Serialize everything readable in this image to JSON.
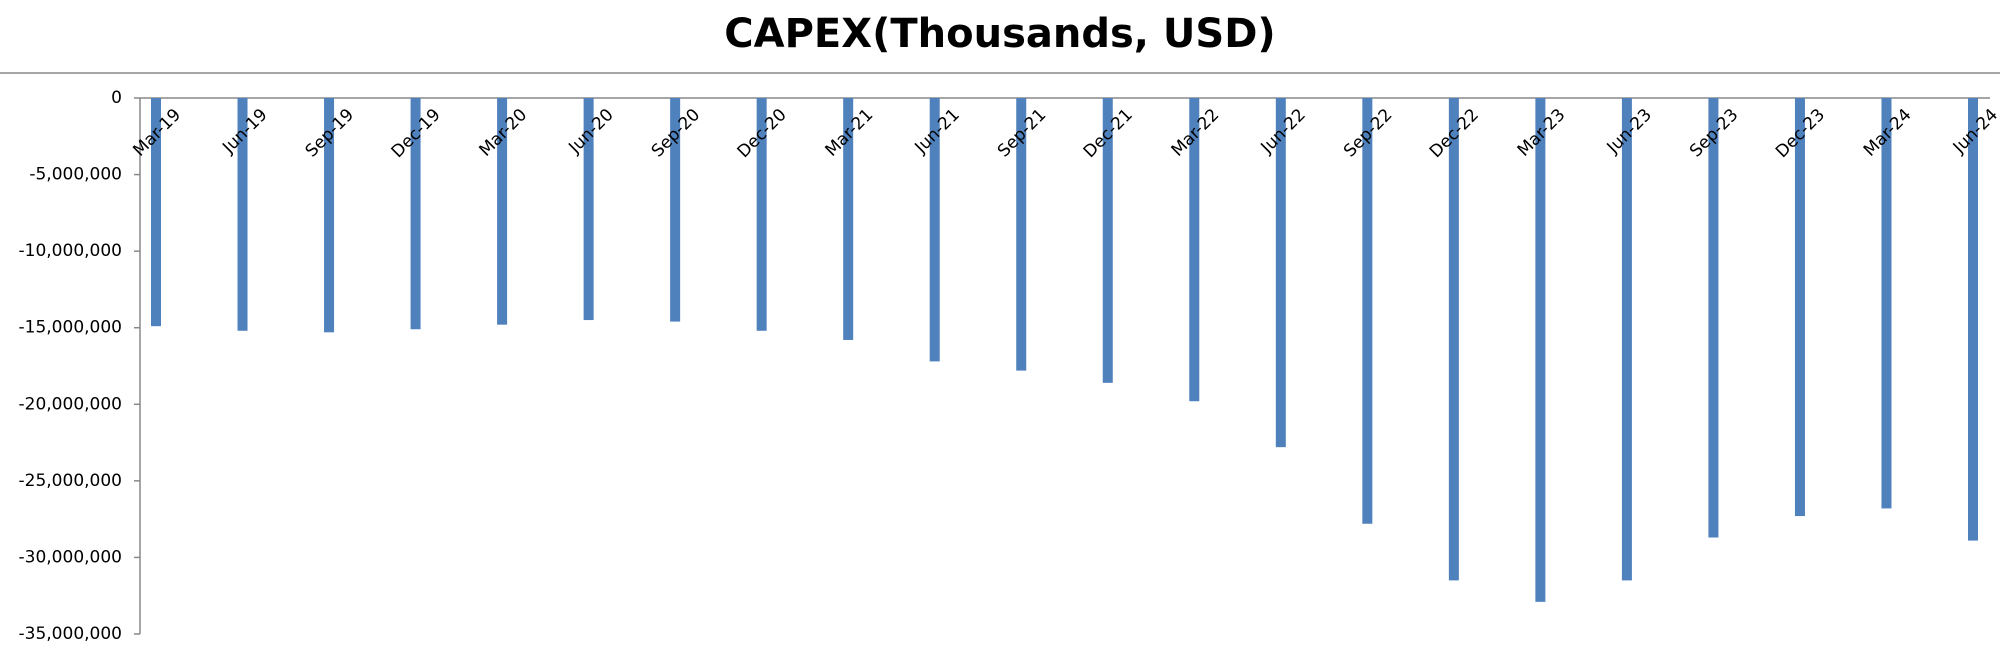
{
  "chart_data": {
    "type": "bar",
    "title": "CAPEX(Thousands, USD)",
    "categories": [
      "Mar-19",
      "Jun-19",
      "Sep-19",
      "Dec-19",
      "Mar-20",
      "Jun-20",
      "Sep-20",
      "Dec-20",
      "Mar-21",
      "Jun-21",
      "Sep-21",
      "Dec-21",
      "Mar-22",
      "Jun-22",
      "Sep-22",
      "Dec-22",
      "Mar-23",
      "Jun-23",
      "Sep-23",
      "Dec-23",
      "Mar-24",
      "Jun-24"
    ],
    "values": [
      -14900000,
      -15200000,
      -15300000,
      -15100000,
      -14800000,
      -14500000,
      -14600000,
      -15200000,
      -15800000,
      -17200000,
      -17800000,
      -18600000,
      -19800000,
      -22800000,
      -27800000,
      -31500000,
      -32900000,
      -31500000,
      -28700000,
      -27300000,
      -26800000,
      -28900000
    ],
    "color": "#4f81bd",
    "ylim": [
      -35000000,
      0
    ],
    "yticks": [
      0,
      {
        "value": -5000000,
        "label": "-5,000,000"
      },
      {
        "value": -10000000,
        "label": "-10,000,000"
      },
      {
        "value": -15000000,
        "label": "-15,000,000"
      },
      {
        "value": -20000000,
        "label": "-20,000,000"
      },
      {
        "value": -25000000,
        "label": "-25,000,000"
      },
      {
        "value": -30000000,
        "label": "-30,000,000"
      },
      {
        "value": -35000000,
        "label": "-35,000,000"
      }
    ],
    "grid": false
  }
}
